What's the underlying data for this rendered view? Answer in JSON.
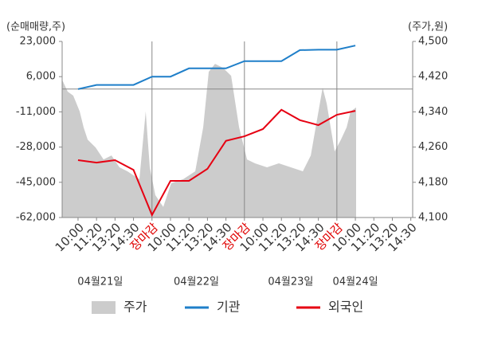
{
  "chart_data": {
    "type": "line",
    "y_label": "(순매매량,주)",
    "y2_label": "(주가,원)",
    "categories": [
      "10:00",
      "11:20",
      "13:20",
      "14:30",
      "장마감",
      "10:00",
      "11:20",
      "13:20",
      "14:30",
      "장마감",
      "10:00",
      "11:20",
      "13:20",
      "14:30",
      "장마감",
      "10:00",
      "11:20",
      "13:20",
      "14:30"
    ],
    "category_colors": [
      "#333",
      "#333",
      "#333",
      "#333",
      "#e00000",
      "#333",
      "#333",
      "#333",
      "#333",
      "#e00000",
      "#333",
      "#333",
      "#333",
      "#333",
      "#e00000",
      "#333",
      "#333",
      "#333",
      "#333"
    ],
    "dates": [
      "04월21일",
      "04월22일",
      "04월23일",
      "04월24일"
    ],
    "xlim": [
      -0.86,
      18.1
    ],
    "ylim": [
      -62000,
      23000
    ],
    "yticks": [
      {
        "value": -62000,
        "label": "-62,000"
      },
      {
        "value": -45000,
        "label": "-45,000"
      },
      {
        "value": -28000,
        "label": "-28,000"
      },
      {
        "value": -11000,
        "label": "-11,000"
      },
      {
        "value": 6000,
        "label": "6,000"
      },
      {
        "value": 23000,
        "label": "23,000"
      }
    ],
    "y2lim": [
      4100,
      4500
    ],
    "y2ticks": [
      {
        "value": 4100,
        "label": "4,100"
      },
      {
        "value": 4180,
        "label": "4,180"
      },
      {
        "value": 4260,
        "label": "4,260"
      },
      {
        "value": 4340,
        "label": "4,340"
      },
      {
        "value": 4420,
        "label": "4,420"
      },
      {
        "value": 4500,
        "label": "4,500"
      }
    ],
    "series": [
      {
        "name": "주가",
        "color": "#cccccc",
        "kind": "area",
        "axis": "y2",
        "x": [
          -0.86,
          -0.56,
          -0.26,
          0.09,
          0.3,
          0.52,
          0.95,
          1.38,
          1.81,
          2.24,
          2.67,
          3.32,
          3.66,
          3.88,
          4.18,
          4.61,
          5.04,
          5.69,
          6.34,
          6.77,
          7.07,
          7.41,
          7.84,
          8.28,
          8.71,
          9.14,
          9.57,
          10.22,
          10.86,
          11.51,
          12.16,
          12.59,
          12.93,
          13.23,
          13.45,
          13.88,
          14.22,
          14.53,
          14.74,
          15.04
        ],
        "values": [
          4413,
          4386,
          4377,
          4341,
          4305,
          4277,
          4259,
          4232,
          4241,
          4214,
          4205,
          4187,
          4341,
          4214,
          4151,
          4124,
          4178,
          4187,
          4205,
          4305,
          4431,
          4449,
          4440,
          4422,
          4305,
          4232,
          4223,
          4214,
          4223,
          4214,
          4205,
          4241,
          4323,
          4395,
          4359,
          4250,
          4277,
          4305,
          4341,
          4350
        ]
      },
      {
        "name": "기관",
        "color": "#1f7fc9",
        "kind": "line",
        "x": [
          0,
          1,
          3,
          4,
          5,
          6,
          8,
          9,
          11,
          12,
          13,
          14,
          15
        ],
        "values": [
          0,
          2000,
          2000,
          6000,
          6000,
          10000,
          10000,
          13500,
          13500,
          18800,
          19000,
          19000,
          21000
        ]
      },
      {
        "name": "외국인",
        "color": "#e60012",
        "kind": "line",
        "x": [
          0,
          1,
          2,
          3,
          4,
          5,
          6,
          7,
          8,
          9,
          10,
          11,
          12,
          13,
          14,
          15
        ],
        "values": [
          -34300,
          -35500,
          -34300,
          -39000,
          -60800,
          -44300,
          -44300,
          -38500,
          -25000,
          -22800,
          -19300,
          -10000,
          -15000,
          -17400,
          -12400,
          -10500
        ]
      }
    ]
  }
}
